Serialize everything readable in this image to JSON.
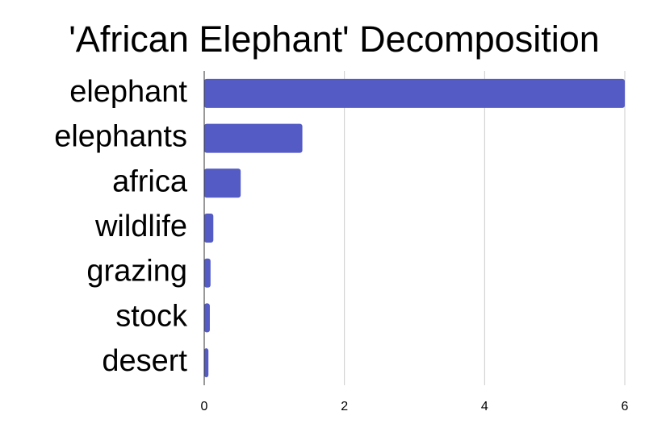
{
  "chart_data": {
    "type": "bar",
    "orientation": "horizontal",
    "title": "'African Elephant' Decomposition",
    "categories": [
      "elephant",
      "elephants",
      "africa",
      "wildlife",
      "grazing",
      "stock",
      "desert"
    ],
    "values": [
      6.0,
      1.4,
      0.52,
      0.13,
      0.09,
      0.08,
      0.06
    ],
    "color": "#545bc4",
    "xlim": [
      0,
      6
    ],
    "xticks": [
      0,
      2,
      4,
      6
    ],
    "grid": true
  }
}
